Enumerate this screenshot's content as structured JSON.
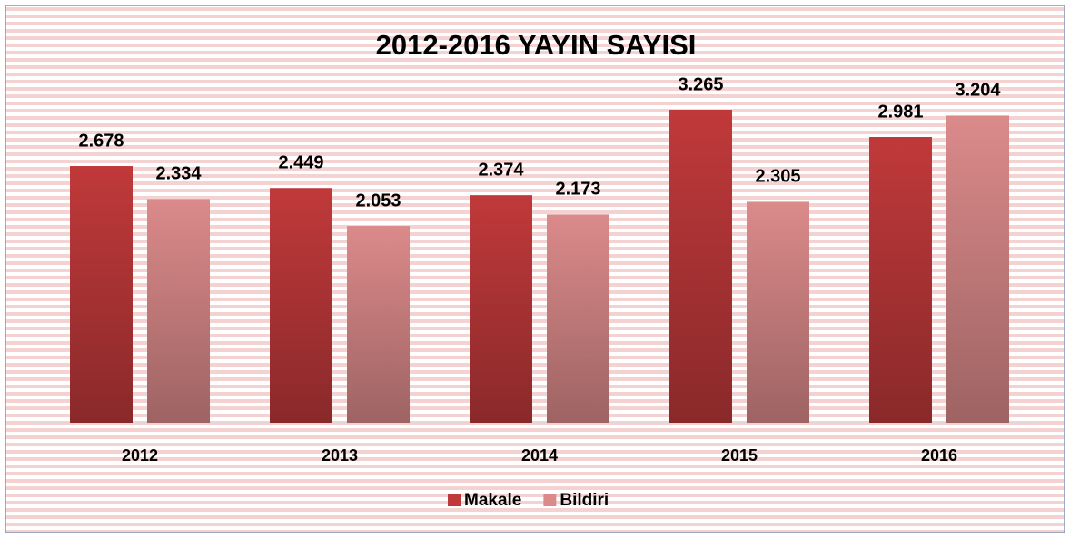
{
  "chart_data": {
    "type": "bar",
    "title": "2012-2016 YAYIN SAYISI",
    "categories": [
      "2012",
      "2013",
      "2014",
      "2015",
      "2016"
    ],
    "series": [
      {
        "name": "Makale",
        "color": "#c0393a",
        "values": [
          2678,
          2449,
          2374,
          3265,
          2981
        ],
        "value_labels": [
          "2.678",
          "2.449",
          "2.374",
          "3.265",
          "2.981"
        ]
      },
      {
        "name": "Bildiri",
        "color": "#db8a8a",
        "values": [
          2334,
          2053,
          2173,
          2305,
          3204
        ],
        "value_labels": [
          "2.334",
          "2.053",
          "2.173",
          "2.305",
          "3.204"
        ]
      }
    ],
    "legend": "bottom"
  }
}
